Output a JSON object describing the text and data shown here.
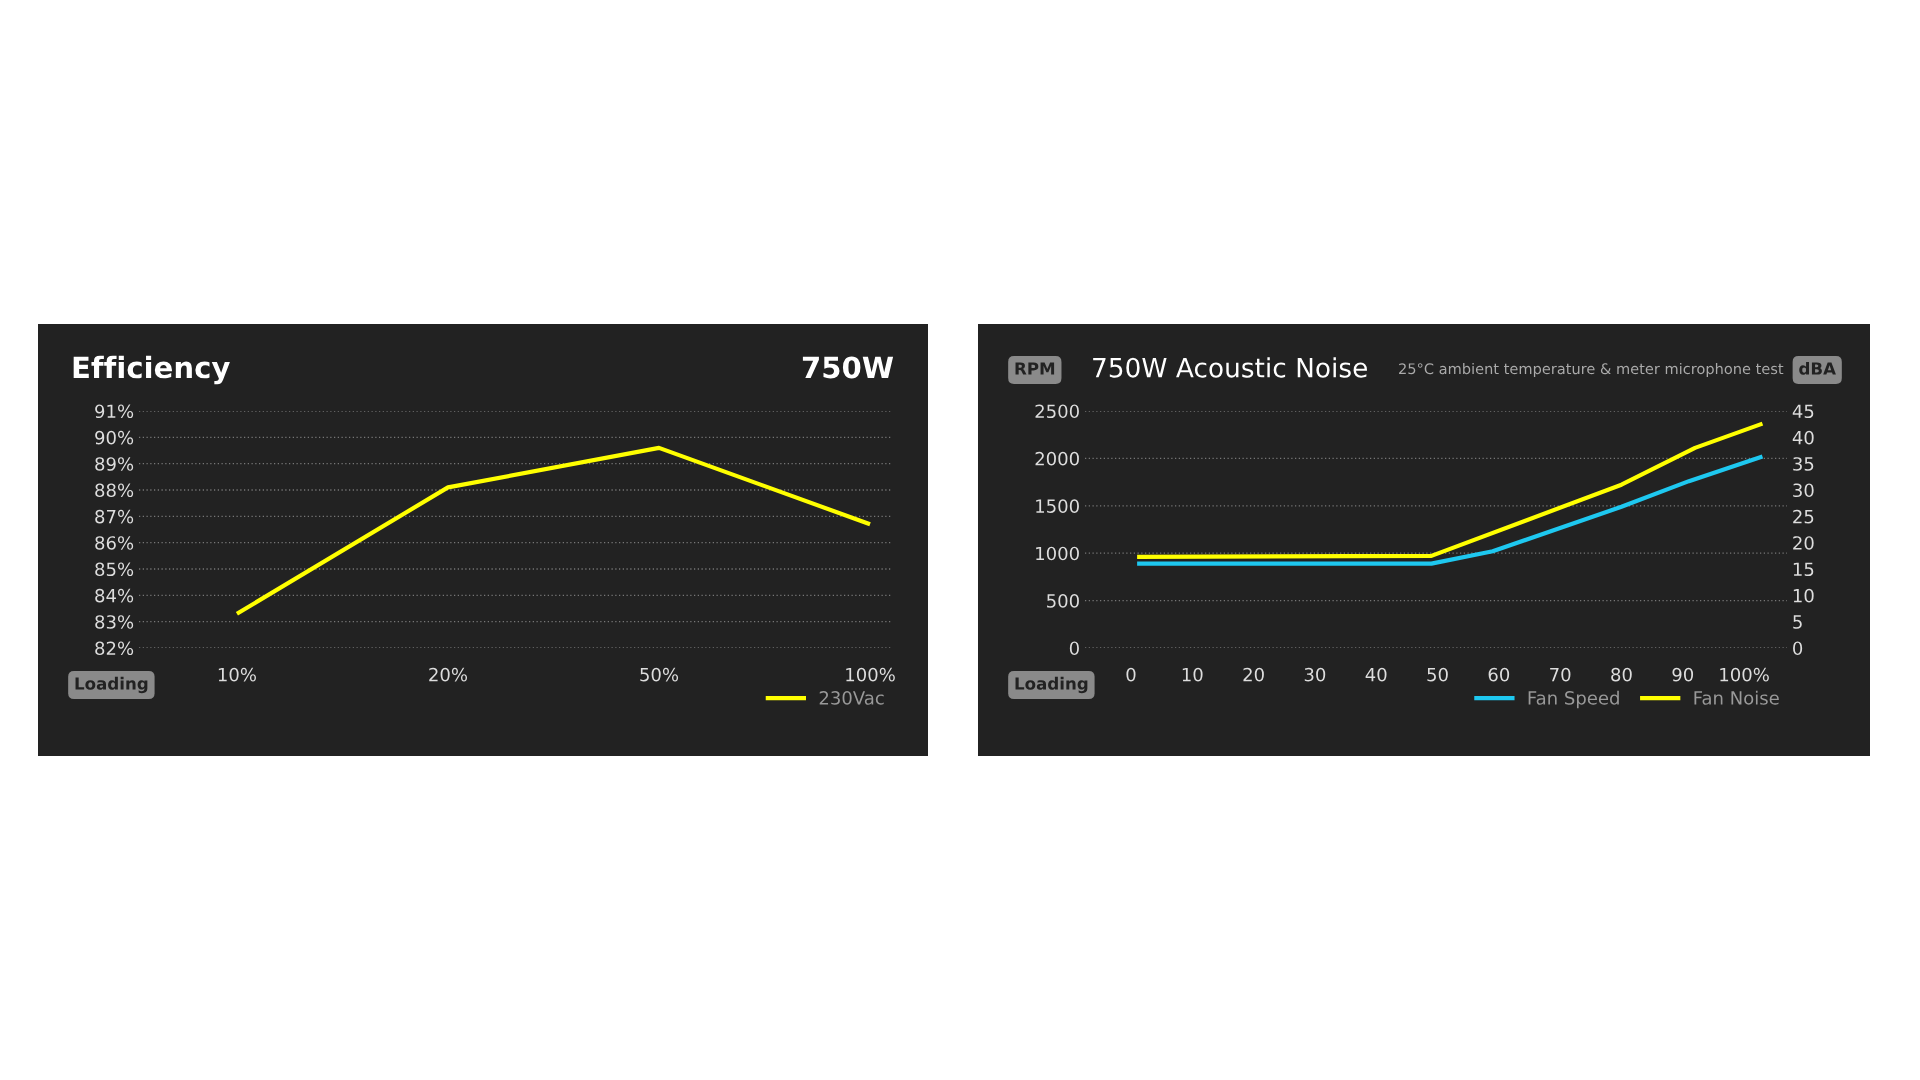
{
  "chart_data": [
    {
      "type": "line",
      "title": "Efficiency",
      "subtitle": "750W",
      "xlabel": "Loading",
      "categories": [
        "10%",
        "20%",
        "50%",
        "100%"
      ],
      "series": [
        {
          "name": "230Vac",
          "color": "#ffff00",
          "values": [
            83.3,
            88.1,
            89.6,
            86.7
          ]
        }
      ],
      "ylim": [
        82,
        91
      ],
      "yticks": [
        {
          "value": 82,
          "label": "82%"
        },
        {
          "value": 83,
          "label": "83%"
        },
        {
          "value": 84,
          "label": "84%"
        },
        {
          "value": 85,
          "label": "85%"
        },
        {
          "value": 86,
          "label": "86%"
        },
        {
          "value": 87,
          "label": "87%"
        },
        {
          "value": 88,
          "label": "88%"
        },
        {
          "value": 89,
          "label": "89%"
        },
        {
          "value": 90,
          "label": "90%"
        },
        {
          "value": 91,
          "label": "91%"
        }
      ],
      "grid": "y",
      "legend": "bottom right",
      "line_style": "solid",
      "marker": "none"
    },
    {
      "type": "line",
      "title": "750W Acoustic Noise",
      "subtitle": "25°C ambient temperature & meter microphone test",
      "xlabel": "Loading",
      "ylabel": "RPM",
      "y2label": "dBA",
      "series": [
        {
          "name": "Fan Speed",
          "color": "#1ec8f0",
          "x": [
            1,
            49,
            59,
            80,
            91,
            103
          ],
          "values": [
            890,
            890,
            1020,
            1490,
            1760,
            2020
          ]
        },
        {
          "name": "Fan Noise",
          "color": "#ffff00",
          "axis": "y2",
          "x": [
            1,
            49,
            80,
            92,
            103
          ],
          "values": [
            17.3,
            17.5,
            31,
            38,
            42.6
          ]
        }
      ],
      "xlim": [
        -7.5,
        107
      ],
      "xticks": [
        0,
        10,
        20,
        30,
        40,
        50,
        60,
        70,
        80,
        90,
        {
          "value": 100,
          "label": "100%"
        }
      ],
      "ylim": [
        0,
        2500
      ],
      "yticks": [
        0,
        500,
        1000,
        1500,
        2000,
        2500
      ],
      "y2lim": [
        0,
        45
      ],
      "y2ticks": [
        0,
        5,
        10,
        15,
        20,
        25,
        30,
        35,
        40,
        45
      ],
      "grid": "y",
      "legend": "bottom right",
      "line_style": "solid",
      "marker": "none"
    }
  ]
}
